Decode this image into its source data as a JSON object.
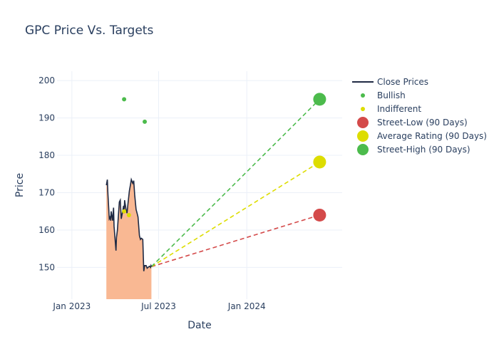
{
  "chart_data": {
    "type": "line",
    "title": "GPC Price Vs. Targets",
    "xlabel": "Date",
    "ylabel": "Price",
    "x_ticks": [
      "Jan 2023",
      "Jul 2023",
      "Jan 2024"
    ],
    "y_ticks": [
      150,
      160,
      170,
      180,
      190,
      200
    ],
    "xlim": [
      "2022-12-01",
      "2024-07-18"
    ],
    "ylim": [
      141.5,
      202.5
    ],
    "grid": true,
    "legend_position": "right",
    "series": [
      {
        "name": "Close Prices",
        "color": "#1f2a44",
        "fill": "#f9b893",
        "x": [
          "2023-03-14",
          "2023-03-16",
          "2023-03-17",
          "2023-03-20",
          "2023-03-22",
          "2023-03-23",
          "2023-03-24",
          "2023-03-27",
          "2023-03-29",
          "2023-03-30",
          "2023-04-03",
          "2023-04-04",
          "2023-04-06",
          "2023-04-10",
          "2023-04-12",
          "2023-04-14",
          "2023-04-17",
          "2023-04-19",
          "2023-04-20",
          "2023-04-21",
          "2023-04-24",
          "2023-04-26",
          "2023-04-28",
          "2023-05-01",
          "2023-05-03",
          "2023-05-05",
          "2023-05-08",
          "2023-05-10",
          "2023-05-12",
          "2023-05-15",
          "2023-05-17",
          "2023-05-19",
          "2023-05-22",
          "2023-05-24",
          "2023-05-26",
          "2023-05-29",
          "2023-05-31",
          "2023-06-02",
          "2023-06-05",
          "2023-06-07",
          "2023-06-09",
          "2023-06-12",
          "2023-06-13",
          "2023-06-14",
          "2023-06-15",
          "2023-06-16"
        ],
        "values": [
          172.0,
          173.5,
          170.0,
          163.0,
          163.5,
          162.5,
          165.0,
          162.5,
          166.0,
          161.0,
          154.5,
          158.0,
          160.0,
          167.5,
          168.0,
          163.0,
          165.0,
          166.5,
          164.5,
          168.0,
          165.5,
          164.5,
          167.0,
          170.5,
          172.0,
          173.5,
          172.5,
          173.2,
          169.5,
          165.5,
          164.5,
          163.5,
          158.5,
          157.5,
          157.8,
          157.5,
          149.0,
          150.5,
          150.5,
          149.8,
          150.0,
          150.3,
          150.2,
          150.0,
          150.5,
          150.2
        ]
      },
      {
        "name": "Bullish",
        "color": "#4cbb4c",
        "x": [
          "2023-04-20",
          "2023-06-02"
        ],
        "values": [
          195,
          189
        ]
      },
      {
        "name": "Indifferent",
        "color": "#dddd00",
        "x": [
          "2023-04-20",
          "2023-04-30"
        ],
        "values": [
          165,
          164
        ]
      },
      {
        "name": "Street-Low (90 Days)",
        "color": "#d44a4a",
        "x": [
          "2024-06-01"
        ],
        "values": [
          164
        ]
      },
      {
        "name": "Average Rating (90 Days)",
        "color": "#dddd00",
        "x": [
          "2024-06-01"
        ],
        "values": [
          178.2
        ]
      },
      {
        "name": "Street-High (90 Days)",
        "color": "#4cbb4c",
        "x": [
          "2024-06-01"
        ],
        "values": [
          195
        ]
      }
    ],
    "target_lines": [
      {
        "from": [
          "2023-06-16",
          150.2
        ],
        "to": [
          "2024-06-01",
          164
        ],
        "color": "#d44a4a"
      },
      {
        "from": [
          "2023-06-16",
          150.2
        ],
        "to": [
          "2024-06-01",
          178.2
        ],
        "color": "#dddd00"
      },
      {
        "from": [
          "2023-06-16",
          150.2
        ],
        "to": [
          "2024-06-01",
          195
        ],
        "color": "#4cbb4c"
      }
    ]
  }
}
